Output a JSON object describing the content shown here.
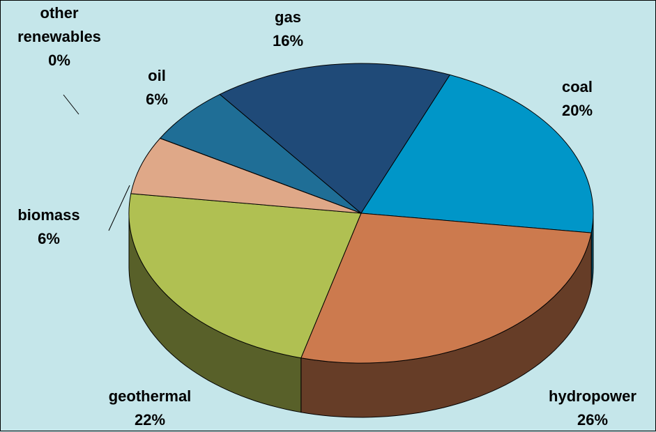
{
  "chart_data": {
    "type": "pie",
    "categories": [
      "oil",
      "gas",
      "coal",
      "hydropower",
      "geothermal",
      "biomass",
      "other renewables"
    ],
    "values": [
      6,
      16,
      20,
      26,
      22,
      6,
      0
    ],
    "value_labels": [
      "6%",
      "16%",
      "20%",
      "26%",
      "22%",
      "6%",
      "0%"
    ],
    "colors": [
      "#1f6e96",
      "#1f4a78",
      "#0096c8",
      "#cc7a4e",
      "#b0c052",
      "#dfa888",
      "#c4f060"
    ]
  }
}
